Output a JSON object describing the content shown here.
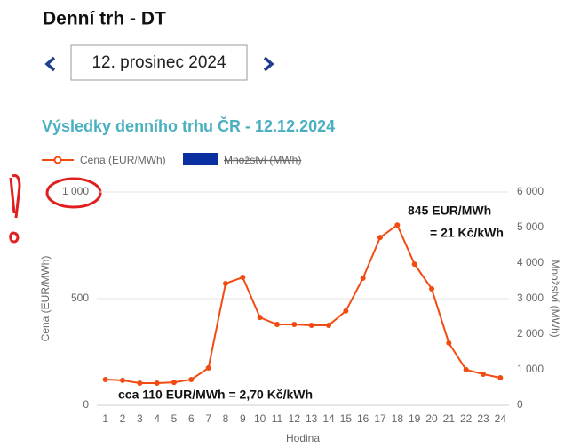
{
  "page": {
    "title": "Denní trh - DT",
    "date": "12. prosinec 2024"
  },
  "chart_data": {
    "type": "line",
    "title": "Výsledky denního trhu ČR - 12.12.2024",
    "categories": [
      "1",
      "2",
      "3",
      "4",
      "5",
      "6",
      "7",
      "8",
      "9",
      "10",
      "11",
      "12",
      "13",
      "14",
      "15",
      "16",
      "17",
      "18",
      "19",
      "20",
      "21",
      "22",
      "23",
      "24"
    ],
    "series": [
      {
        "name": "Cena (EUR/MWh)",
        "color": "#f24b12",
        "values": [
          121,
          117,
          104,
          104,
          108,
          121,
          175,
          571,
          600,
          412,
          379,
          379,
          375,
          375,
          442,
          596,
          787,
          845,
          662,
          546,
          292,
          167,
          146,
          129
        ]
      }
    ],
    "hidden_series": {
      "name": "Množství (MWh)",
      "color": "#0a2fa0"
    },
    "ylabel": "Cena (EUR/MWh)",
    "y2label": "Množství (MWh)",
    "xlabel": "Hodina",
    "ylim": [
      0,
      1000
    ],
    "yticks": [
      0,
      500,
      {
        "value": 1000,
        "label": "1 000"
      }
    ],
    "y2lim": [
      0,
      6000
    ],
    "y2ticks": [
      0,
      {
        "value": 1000,
        "label": "1 000"
      },
      {
        "value": 2000,
        "label": "2 000"
      },
      {
        "value": 3000,
        "label": "3 000"
      },
      {
        "value": 4000,
        "label": "4 000"
      },
      {
        "value": 5000,
        "label": "5 000"
      },
      {
        "value": 6000,
        "label": "6 000"
      }
    ],
    "grid": true,
    "annotations": [
      "845 EUR/MWh",
      "= 21 Kč/kWh",
      "cca 110 EUR/MWh = 2,70 Kč/kWh"
    ]
  }
}
